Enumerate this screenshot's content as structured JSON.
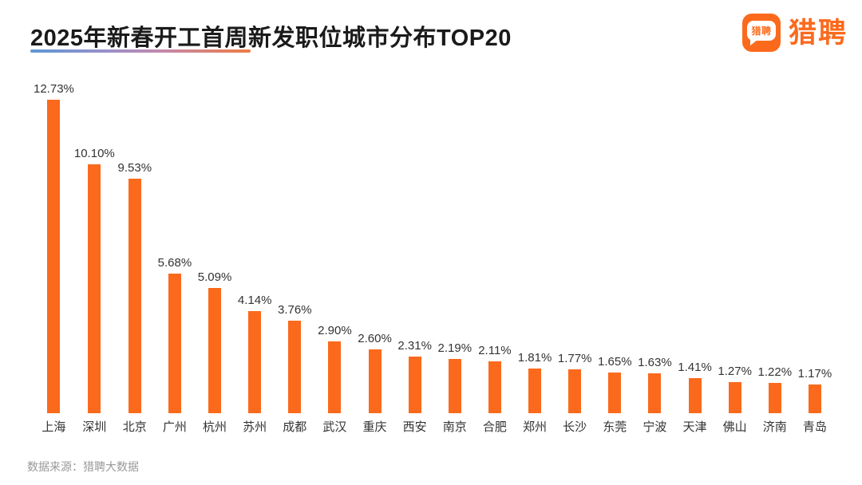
{
  "header": {
    "title": "2025年新春开工首周新发职位城市分布TOP20"
  },
  "logo": {
    "mark_text": "猎聘",
    "text": "猎聘",
    "brand_color": "#fb6a1c"
  },
  "colors": {
    "bar": "#fb6a1c",
    "title_text": "#1a1a1a",
    "value_text": "#333333",
    "footer_text": "#999999",
    "underline_gradient": [
      "#5e97d5",
      "#9b90c9",
      "#c489ab",
      "#ee7c45"
    ]
  },
  "chart_data": {
    "type": "bar",
    "title": "2025年新春开工首周新发职位城市分布TOP20",
    "xlabel": "",
    "ylabel": "",
    "unit": "%",
    "ylim": [
      0,
      13
    ],
    "grid": false,
    "legend": false,
    "bar_color": "#fb6a1c",
    "categories": [
      "上海",
      "深圳",
      "北京",
      "广州",
      "杭州",
      "苏州",
      "成都",
      "武汉",
      "重庆",
      "西安",
      "南京",
      "合肥",
      "郑州",
      "长沙",
      "东莞",
      "宁波",
      "天津",
      "佛山",
      "济南",
      "青岛"
    ],
    "values": [
      12.73,
      10.1,
      9.53,
      5.68,
      5.09,
      4.14,
      3.76,
      2.9,
      2.6,
      2.31,
      2.19,
      2.11,
      1.81,
      1.77,
      1.65,
      1.63,
      1.41,
      1.27,
      1.22,
      1.17
    ],
    "labels": [
      "12.73%",
      "10.10%",
      "9.53%",
      "5.68%",
      "5.09%",
      "4.14%",
      "3.76%",
      "2.90%",
      "2.60%",
      "2.31%",
      "2.19%",
      "2.11%",
      "1.81%",
      "1.77%",
      "1.65%",
      "1.63%",
      "1.41%",
      "1.27%",
      "1.22%",
      "1.17%"
    ]
  },
  "footer": {
    "source": "数据来源：猎聘大数据"
  }
}
